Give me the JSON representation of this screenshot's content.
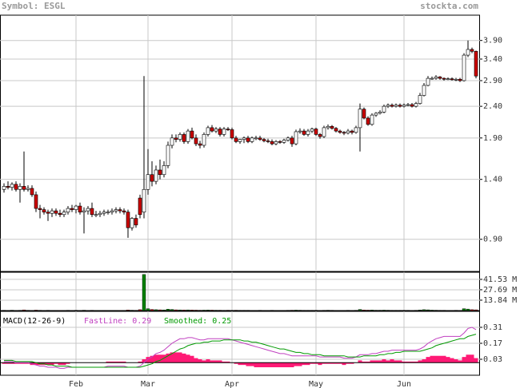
{
  "chart_data": [
    {
      "type": "candlestick",
      "title": "Symbol: ESGL",
      "source": "stockta.com",
      "log_scale": true,
      "grid": true,
      "up_color": "#ffffff",
      "down_color": "#cc0000",
      "ylim": [
        0.71,
        4.7
      ],
      "yticks": [
        {
          "value": 0.9,
          "label": "0.90"
        },
        {
          "value": 1.4,
          "label": "1.40"
        },
        {
          "value": 1.9,
          "label": "1.90"
        },
        {
          "value": 2.4,
          "label": "2.40"
        },
        {
          "value": 2.9,
          "label": "2.90"
        },
        {
          "value": 3.4,
          "label": "3.40"
        },
        {
          "value": 3.9,
          "label": "3.90"
        }
      ],
      "open": [
        1.3,
        1.33,
        1.32,
        1.35,
        1.3,
        1.33,
        1.3,
        1.31,
        1.25,
        1.13,
        1.12,
        1.1,
        1.09,
        1.11,
        1.09,
        1.08,
        1.1,
        1.13,
        1.12,
        1.15,
        1.1,
        1.11,
        1.13,
        1.08,
        1.08,
        1.09,
        1.1,
        1.1,
        1.11,
        1.12,
        1.11,
        1.1,
        0.98,
        1.05,
        1.22,
        1.1,
        1.3,
        1.45,
        1.38,
        1.5,
        1.45,
        1.55,
        1.8,
        1.9,
        1.88,
        1.95,
        1.85,
        2.0,
        1.9,
        1.82,
        1.8,
        1.95,
        2.05,
        2.0,
        2.03,
        1.95,
        2.03,
        2.02,
        1.9,
        1.85,
        1.88,
        1.9,
        1.85,
        1.9,
        1.9,
        1.88,
        1.86,
        1.85,
        1.82,
        1.85,
        1.84,
        1.87,
        1.9,
        1.82,
        1.99,
        2.0,
        1.95,
        2.0,
        2.03,
        1.95,
        1.92,
        2.05,
        2.07,
        2.04,
        2.0,
        1.98,
        1.97,
        2.0,
        1.98,
        2.05,
        2.35,
        2.2,
        2.1,
        2.25,
        2.28,
        2.3,
        2.4,
        2.42,
        2.4,
        2.42,
        2.4,
        2.42,
        2.43,
        2.4,
        2.45,
        2.6,
        2.8,
        2.95,
        2.95,
        2.98,
        2.95,
        2.93,
        2.94,
        2.92,
        2.93,
        2.9,
        3.5,
        3.65,
        3.6
      ],
      "high": [
        1.36,
        1.38,
        1.37,
        1.38,
        1.36,
        1.72,
        1.34,
        1.34,
        1.28,
        1.16,
        1.14,
        1.12,
        1.13,
        1.13,
        1.12,
        1.12,
        1.15,
        1.16,
        1.16,
        1.18,
        1.14,
        1.15,
        1.18,
        1.11,
        1.11,
        1.12,
        1.12,
        1.13,
        1.14,
        1.14,
        1.13,
        1.12,
        1.06,
        1.08,
        1.25,
        3.0,
        1.75,
        1.6,
        1.55,
        1.62,
        1.6,
        1.85,
        1.95,
        1.95,
        1.98,
        1.98,
        2.03,
        2.05,
        1.95,
        1.86,
        1.98,
        2.08,
        2.09,
        2.06,
        2.06,
        2.06,
        2.06,
        2.05,
        1.93,
        1.89,
        1.92,
        1.93,
        1.92,
        1.93,
        1.93,
        1.9,
        1.89,
        1.88,
        1.87,
        1.87,
        1.89,
        1.92,
        1.93,
        2.02,
        2.04,
        2.03,
        2.03,
        2.05,
        2.05,
        1.97,
        2.08,
        2.1,
        2.09,
        2.06,
        2.02,
        2.0,
        2.03,
        2.02,
        2.08,
        2.45,
        2.38,
        2.23,
        2.28,
        2.3,
        2.33,
        2.43,
        2.45,
        2.45,
        2.45,
        2.45,
        2.45,
        2.46,
        2.46,
        2.48,
        2.65,
        2.85,
        3.0,
        2.99,
        3.02,
        3.0,
        2.97,
        2.97,
        2.97,
        2.96,
        2.96,
        3.55,
        3.9,
        3.7,
        3.62
      ],
      "low": [
        1.27,
        1.3,
        1.29,
        1.28,
        1.18,
        1.28,
        1.28,
        1.23,
        1.1,
        1.05,
        1.08,
        1.03,
        1.06,
        1.07,
        1.06,
        1.06,
        1.08,
        1.1,
        1.09,
        1.08,
        0.94,
        1.08,
        1.06,
        1.06,
        1.06,
        1.07,
        1.08,
        1.08,
        1.09,
        1.09,
        1.08,
        0.91,
        0.96,
        0.98,
        1.05,
        1.05,
        1.25,
        1.33,
        1.35,
        1.4,
        1.42,
        1.52,
        1.76,
        1.84,
        1.85,
        1.82,
        1.82,
        1.88,
        1.79,
        1.76,
        1.77,
        1.92,
        1.98,
        1.97,
        1.92,
        1.92,
        2.0,
        1.88,
        1.83,
        1.82,
        1.83,
        1.83,
        1.83,
        1.87,
        1.86,
        1.84,
        1.83,
        1.8,
        1.8,
        1.82,
        1.82,
        1.85,
        1.78,
        1.8,
        1.96,
        1.93,
        1.92,
        1.97,
        1.93,
        1.89,
        1.9,
        2.02,
        2.02,
        1.98,
        1.96,
        1.94,
        1.95,
        1.95,
        1.96,
        1.72,
        2.18,
        2.08,
        2.08,
        2.22,
        2.26,
        2.28,
        2.37,
        2.38,
        2.38,
        2.38,
        2.38,
        2.4,
        2.38,
        2.38,
        2.43,
        2.58,
        2.78,
        2.92,
        2.92,
        2.92,
        2.9,
        2.91,
        2.9,
        2.89,
        2.87,
        2.88,
        3.45,
        3.55,
        2.95
      ],
      "close": [
        1.33,
        1.32,
        1.35,
        1.3,
        1.33,
        1.3,
        1.31,
        1.25,
        1.13,
        1.12,
        1.1,
        1.09,
        1.11,
        1.09,
        1.08,
        1.1,
        1.13,
        1.12,
        1.15,
        1.1,
        1.11,
        1.13,
        1.08,
        1.08,
        1.09,
        1.1,
        1.1,
        1.11,
        1.12,
        1.11,
        1.1,
        0.98,
        1.05,
        1.0,
        1.08,
        1.3,
        1.45,
        1.38,
        1.5,
        1.45,
        1.55,
        1.8,
        1.9,
        1.88,
        1.95,
        1.85,
        2.0,
        1.9,
        1.82,
        1.8,
        1.95,
        2.05,
        2.0,
        2.03,
        1.95,
        2.03,
        2.02,
        1.9,
        1.85,
        1.88,
        1.9,
        1.85,
        1.9,
        1.9,
        1.88,
        1.86,
        1.85,
        1.82,
        1.85,
        1.84,
        1.87,
        1.9,
        1.82,
        1.99,
        2.0,
        1.95,
        2.0,
        2.03,
        1.95,
        1.92,
        2.05,
        2.07,
        2.04,
        2.0,
        1.98,
        1.97,
        2.0,
        1.98,
        2.05,
        2.35,
        2.2,
        2.1,
        2.25,
        2.28,
        2.3,
        2.4,
        2.42,
        2.4,
        2.42,
        2.4,
        2.42,
        2.43,
        2.4,
        2.45,
        2.6,
        2.8,
        2.95,
        2.95,
        2.98,
        2.95,
        2.93,
        2.94,
        2.92,
        2.93,
        2.9,
        3.5,
        3.65,
        3.6,
        3.0
      ]
    },
    {
      "type": "volume",
      "grid": true,
      "up_color": "#008000",
      "down_color": "#cc0000",
      "ylim": [
        0,
        51
      ],
      "yticks": [
        {
          "value": 13.84,
          "label": "13.84 M"
        },
        {
          "value": 27.69,
          "label": "27.69 M"
        },
        {
          "value": 41.53,
          "label": "41.53 M"
        }
      ],
      "values": [
        0.4,
        0.3,
        0.5,
        0.3,
        0.4,
        0.9,
        0.4,
        0.3,
        0.6,
        0.4,
        0.3,
        0.4,
        0.3,
        0.3,
        0.2,
        0.3,
        0.4,
        0.3,
        0.4,
        0.3,
        0.5,
        0.3,
        0.4,
        0.2,
        0.2,
        0.3,
        0.2,
        0.3,
        0.3,
        0.2,
        0.3,
        0.8,
        0.5,
        0.4,
        1.2,
        48.0,
        2.5,
        1.5,
        1.2,
        1.0,
        0.9,
        1.8,
        1.5,
        1.0,
        0.9,
        0.8,
        0.9,
        0.7,
        0.6,
        0.5,
        0.6,
        0.7,
        0.6,
        0.5,
        0.5,
        0.4,
        0.5,
        0.4,
        0.5,
        0.4,
        0.4,
        0.4,
        0.3,
        0.3,
        0.4,
        0.3,
        0.3,
        0.4,
        0.3,
        0.3,
        0.3,
        0.4,
        0.5,
        0.6,
        0.5,
        0.4,
        0.4,
        0.4,
        0.4,
        0.3,
        0.4,
        0.5,
        0.4,
        0.3,
        0.3,
        0.3,
        0.4,
        0.3,
        0.4,
        1.5,
        0.8,
        0.6,
        0.7,
        0.5,
        0.5,
        0.6,
        0.5,
        0.4,
        0.4,
        0.4,
        0.4,
        0.4,
        0.3,
        0.4,
        0.8,
        1.2,
        1.0,
        0.6,
        0.5,
        0.4,
        0.4,
        0.3,
        0.3,
        0.4,
        0.3,
        2.5,
        2.0,
        1.2,
        1.0
      ]
    },
    {
      "type": "macd",
      "title": "MACD(12-26-9)",
      "grid": true,
      "ylim": [
        -0.11,
        0.45
      ],
      "yticks": [
        0.03,
        0.17,
        0.31
      ],
      "categories": [
        null,
        null,
        null,
        null,
        null,
        null,
        null,
        null,
        null,
        null,
        null,
        null,
        null,
        null,
        null,
        null,
        null,
        null,
        "Feb",
        null,
        null,
        null,
        null,
        null,
        null,
        null,
        null,
        null,
        null,
        null,
        null,
        null,
        null,
        null,
        null,
        null,
        "Mar",
        null,
        null,
        null,
        null,
        null,
        null,
        null,
        null,
        null,
        null,
        null,
        null,
        null,
        null,
        null,
        null,
        null,
        null,
        null,
        null,
        "Apr",
        null,
        null,
        null,
        null,
        null,
        null,
        null,
        null,
        null,
        null,
        null,
        null,
        null,
        null,
        null,
        null,
        null,
        null,
        null,
        null,
        "May",
        null,
        null,
        null,
        null,
        null,
        null,
        null,
        null,
        null,
        null,
        null,
        null,
        null,
        null,
        null,
        null,
        null,
        null,
        null,
        null,
        null,
        "Jun",
        null,
        null,
        null,
        null,
        null,
        null,
        null,
        null,
        null,
        null,
        null,
        null,
        null,
        null,
        null,
        null,
        null,
        null
      ],
      "series": [
        {
          "name": "FastLine: 0.29",
          "color": "#c040c0",
          "values": [
            0.01,
            0.01,
            0.01,
            0.0,
            0.0,
            0.0,
            0.0,
            -0.01,
            -0.02,
            -0.03,
            -0.03,
            -0.04,
            -0.04,
            -0.04,
            -0.05,
            -0.05,
            -0.04,
            -0.04,
            -0.04,
            -0.04,
            -0.04,
            -0.04,
            -0.04,
            -0.04,
            -0.04,
            -0.04,
            -0.03,
            -0.03,
            -0.03,
            -0.03,
            -0.03,
            -0.04,
            -0.04,
            -0.04,
            -0.03,
            0.0,
            0.03,
            0.05,
            0.08,
            0.09,
            0.11,
            0.14,
            0.17,
            0.19,
            0.21,
            0.21,
            0.22,
            0.22,
            0.21,
            0.2,
            0.2,
            0.21,
            0.21,
            0.21,
            0.21,
            0.21,
            0.21,
            0.2,
            0.19,
            0.18,
            0.17,
            0.16,
            0.15,
            0.14,
            0.13,
            0.12,
            0.11,
            0.1,
            0.09,
            0.08,
            0.08,
            0.07,
            0.06,
            0.06,
            0.06,
            0.06,
            0.06,
            0.06,
            0.06,
            0.05,
            0.05,
            0.05,
            0.05,
            0.05,
            0.05,
            0.04,
            0.04,
            0.04,
            0.05,
            0.07,
            0.07,
            0.07,
            0.08,
            0.08,
            0.09,
            0.1,
            0.1,
            0.11,
            0.11,
            0.11,
            0.11,
            0.11,
            0.11,
            0.11,
            0.12,
            0.14,
            0.17,
            0.19,
            0.21,
            0.22,
            0.23,
            0.23,
            0.23,
            0.23,
            0.23,
            0.26,
            0.3,
            0.31,
            0.29
          ]
        },
        {
          "name": "Smoothed: 0.25",
          "color": "#009900",
          "values": [
            0.02,
            0.02,
            0.02,
            0.01,
            0.01,
            0.01,
            0.01,
            0.01,
            0.0,
            -0.01,
            -0.01,
            -0.02,
            -0.02,
            -0.03,
            -0.03,
            -0.03,
            -0.03,
            -0.04,
            -0.04,
            -0.04,
            -0.04,
            -0.04,
            -0.04,
            -0.04,
            -0.04,
            -0.04,
            -0.04,
            -0.04,
            -0.04,
            -0.04,
            -0.04,
            -0.04,
            -0.04,
            -0.04,
            -0.04,
            -0.03,
            -0.02,
            -0.01,
            0.01,
            0.02,
            0.04,
            0.06,
            0.08,
            0.1,
            0.12,
            0.13,
            0.15,
            0.16,
            0.17,
            0.17,
            0.18,
            0.18,
            0.19,
            0.19,
            0.19,
            0.2,
            0.2,
            0.2,
            0.2,
            0.2,
            0.19,
            0.19,
            0.18,
            0.18,
            0.17,
            0.16,
            0.15,
            0.14,
            0.13,
            0.12,
            0.12,
            0.11,
            0.1,
            0.09,
            0.09,
            0.08,
            0.08,
            0.07,
            0.07,
            0.07,
            0.06,
            0.06,
            0.06,
            0.06,
            0.06,
            0.06,
            0.05,
            0.05,
            0.05,
            0.05,
            0.06,
            0.06,
            0.06,
            0.06,
            0.07,
            0.07,
            0.08,
            0.08,
            0.09,
            0.09,
            0.1,
            0.1,
            0.1,
            0.1,
            0.1,
            0.11,
            0.12,
            0.13,
            0.15,
            0.16,
            0.17,
            0.18,
            0.19,
            0.2,
            0.21,
            0.21,
            0.23,
            0.24,
            0.25
          ]
        }
      ],
      "histogram_color": "#ff1a75",
      "histogram_values": [
        -0.01,
        -0.01,
        -0.01,
        -0.01,
        -0.01,
        -0.01,
        -0.01,
        -0.02,
        -0.02,
        -0.02,
        -0.02,
        -0.02,
        -0.02,
        -0.01,
        -0.02,
        -0.02,
        -0.01,
        0.0,
        0.0,
        0.0,
        0.0,
        0.0,
        0.0,
        0.0,
        0.0,
        0.0,
        0.01,
        0.01,
        0.01,
        0.01,
        0.01,
        0.0,
        0.0,
        0.0,
        0.01,
        0.03,
        0.05,
        0.06,
        0.07,
        0.07,
        0.07,
        0.08,
        0.09,
        0.09,
        0.09,
        0.08,
        0.07,
        0.06,
        0.04,
        0.03,
        0.02,
        0.03,
        0.02,
        0.02,
        0.02,
        0.01,
        0.01,
        0.0,
        -0.01,
        -0.02,
        -0.02,
        -0.03,
        -0.03,
        -0.04,
        -0.04,
        -0.04,
        -0.04,
        -0.04,
        -0.04,
        -0.04,
        -0.04,
        -0.04,
        -0.04,
        -0.03,
        -0.03,
        -0.02,
        -0.02,
        -0.01,
        -0.01,
        -0.02,
        -0.01,
        -0.01,
        -0.01,
        -0.01,
        -0.01,
        -0.02,
        -0.01,
        -0.01,
        0.0,
        0.02,
        0.01,
        0.01,
        0.02,
        0.02,
        0.02,
        0.03,
        0.02,
        0.03,
        0.02,
        0.02,
        0.01,
        0.01,
        0.01,
        0.01,
        0.02,
        0.03,
        0.05,
        0.06,
        0.06,
        0.06,
        0.06,
        0.05,
        0.04,
        0.03,
        0.02,
        0.05,
        0.07,
        0.07,
        0.04
      ]
    }
  ]
}
